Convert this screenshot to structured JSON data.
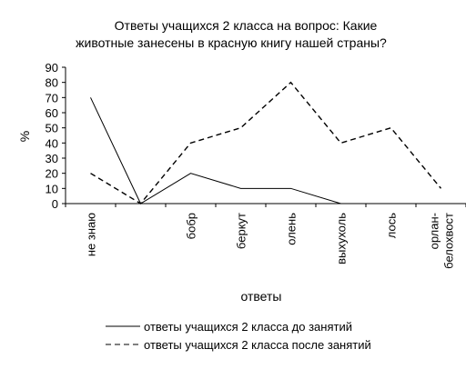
{
  "chart_data": {
    "type": "line",
    "title": [
      "Ответы учащихся 2 класса на вопрос: Какие",
      "животные занесены в красную книгу нашей страны?"
    ],
    "xlabel": "ответы",
    "ylabel": "%",
    "ylim": [
      0,
      90
    ],
    "yticks": [
      0,
      10,
      20,
      30,
      40,
      50,
      60,
      70,
      80,
      90
    ],
    "grid": false,
    "legend_position": "bottom",
    "categories": [
      [
        "не знаю"
      ],
      [
        ""
      ],
      [
        "бобр"
      ],
      [
        "беркут"
      ],
      [
        "олень"
      ],
      [
        "выхухоль"
      ],
      [
        "лось"
      ],
      [
        "орлан-",
        "белохвост"
      ]
    ],
    "series": [
      {
        "name": "ответы учащихся 2 класса до занятий",
        "style": "solid",
        "values": [
          70,
          0,
          20,
          10,
          10,
          0,
          null,
          null
        ]
      },
      {
        "name": "ответы учащихся 2 класса после занятий",
        "style": "dashed",
        "values": [
          20,
          0,
          40,
          50,
          80,
          40,
          50,
          10
        ]
      }
    ]
  }
}
